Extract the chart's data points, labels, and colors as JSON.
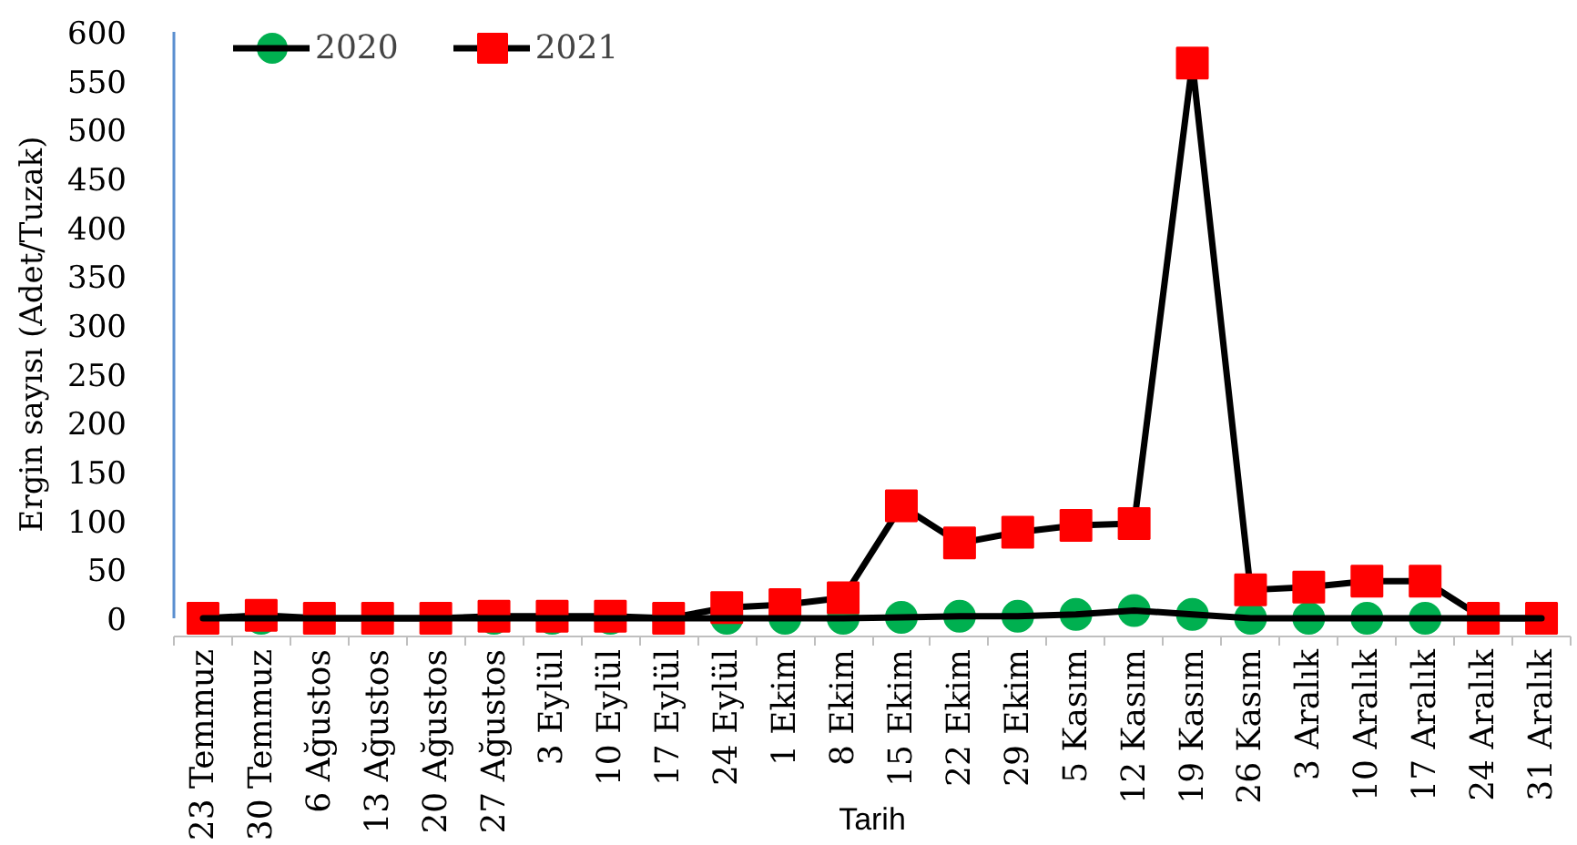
{
  "chart_data": {
    "type": "line",
    "xlabel": "Tarih",
    "ylabel": "Ergin sayısı (Adet/Tuzak)",
    "categories": [
      "23 Temmuz",
      "30 Temmuz",
      "6 Ağustos",
      "13 Ağustos",
      "20 Ağustos",
      "27 Ağustos",
      "3 Eylül",
      "10 Eylül",
      "17 Eylül",
      "24 Eylül",
      "1 Ekim",
      "8 Ekim",
      "15 Ekim",
      "22 Ekim",
      "29 Ekim",
      "5 Kasım",
      "12 Kasım",
      "19 Kasım",
      "26 Kasım",
      "3 Aralık",
      "10 Aralık",
      "17 Aralık",
      "24 Aralık",
      "31 Aralık"
    ],
    "series": [
      {
        "name": "2020",
        "color": "#00b050",
        "marker": "circle",
        "values": [
          0,
          0,
          0,
          0,
          0,
          0,
          0,
          0,
          0,
          0,
          0,
          0,
          1,
          2,
          2,
          4,
          8,
          4,
          0,
          0,
          0,
          0,
          0,
          0
        ]
      },
      {
        "name": "2021",
        "color": "#ff0000",
        "marker": "square",
        "values": [
          0,
          3,
          0,
          0,
          0,
          2,
          2,
          2,
          0,
          11,
          14,
          21,
          115,
          77,
          88,
          95,
          97,
          568,
          29,
          32,
          38,
          38,
          0,
          0
        ]
      }
    ],
    "ylim": [
      0,
      600
    ],
    "yticks": [
      0,
      50,
      100,
      150,
      200,
      250,
      300,
      350,
      400,
      450,
      500,
      550,
      600
    ],
    "grid": false,
    "legend": "top left",
    "line_style": "solid"
  }
}
